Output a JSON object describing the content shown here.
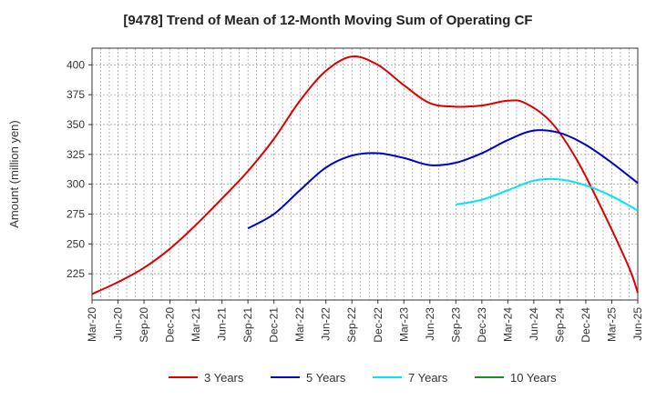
{
  "chart_data": {
    "type": "line",
    "title": "[9478]  Trend of Mean of 12-Month Moving Sum of Operating CF",
    "xlabel": "",
    "ylabel": "Amount (million yen)",
    "ylim": [
      203,
      414
    ],
    "yticks": [
      225,
      250,
      275,
      300,
      325,
      350,
      375,
      400
    ],
    "xticks": [
      "Mar-20",
      "Jun-20",
      "Sep-20",
      "Dec-20",
      "Mar-21",
      "Jun-21",
      "Sep-21",
      "Dec-21",
      "Mar-22",
      "Jun-22",
      "Sep-22",
      "Dec-22",
      "Mar-23",
      "Jun-23",
      "Sep-23",
      "Dec-23",
      "Mar-24",
      "Jun-24",
      "Sep-24",
      "Dec-24",
      "Mar-25",
      "Jun-25"
    ],
    "grid": true,
    "legend_position": "bottom",
    "series": [
      {
        "name": "3 Years",
        "color": "#dd0000",
        "points": [
          [
            0,
            208
          ],
          [
            3,
            218
          ],
          [
            6,
            230
          ],
          [
            9,
            246
          ],
          [
            12,
            266
          ],
          [
            15,
            288
          ],
          [
            18,
            311
          ],
          [
            21,
            338
          ],
          [
            24,
            370
          ],
          [
            27,
            395
          ],
          [
            30,
            407
          ],
          [
            33,
            400
          ],
          [
            36,
            383
          ],
          [
            39,
            368
          ],
          [
            42,
            365
          ],
          [
            45,
            366
          ],
          [
            48,
            370
          ],
          [
            50,
            368
          ],
          [
            53,
            352
          ],
          [
            56,
            320
          ],
          [
            59,
            277
          ],
          [
            62,
            230
          ],
          [
            63,
            209
          ]
        ]
      },
      {
        "name": "5 Years",
        "color": "#0000cc",
        "points": [
          [
            18,
            263
          ],
          [
            21,
            275
          ],
          [
            24,
            295
          ],
          [
            27,
            314
          ],
          [
            30,
            324
          ],
          [
            33,
            326
          ],
          [
            36,
            322
          ],
          [
            39,
            316
          ],
          [
            42,
            318
          ],
          [
            45,
            326
          ],
          [
            48,
            337
          ],
          [
            51,
            345
          ],
          [
            54,
            343
          ],
          [
            57,
            333
          ],
          [
            60,
            318
          ],
          [
            63,
            301
          ]
        ]
      },
      {
        "name": "7 Years",
        "color": "#00e5ee",
        "points": [
          [
            42,
            283
          ],
          [
            45,
            287
          ],
          [
            48,
            295
          ],
          [
            51,
            303
          ],
          [
            54,
            304
          ],
          [
            57,
            299
          ],
          [
            60,
            290
          ],
          [
            63,
            278
          ]
        ]
      },
      {
        "name": "10 Years",
        "color": "#228b22",
        "points": []
      }
    ]
  }
}
